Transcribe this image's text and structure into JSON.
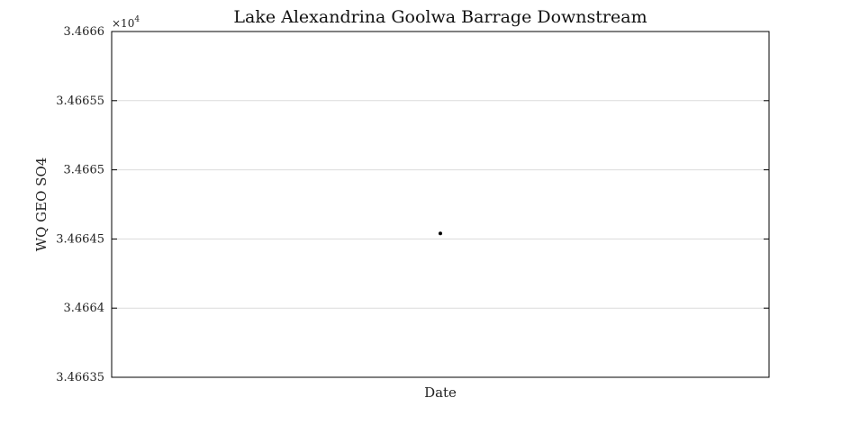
{
  "chart_data": {
    "type": "scatter",
    "title": "Lake Alexandrina Goolwa Barrage Downstream",
    "xlabel": "Date",
    "ylabel": "WQ GEO SO4",
    "y_multiplier_prefix": "×10",
    "y_multiplier_exponent": "4",
    "ylim": [
      3.46635,
      3.4666
    ],
    "yticks": [
      {
        "value": 3.46635,
        "label": "3.46635"
      },
      {
        "value": 3.4664,
        "label": "3.4664"
      },
      {
        "value": 3.46645,
        "label": "3.46645"
      },
      {
        "value": 3.4665,
        "label": "3.4665"
      },
      {
        "value": 3.46655,
        "label": "3.46655"
      },
      {
        "value": 3.4666,
        "label": "3.4666"
      }
    ],
    "grid": true,
    "series": [
      {
        "points": [
          {
            "x": 0.5,
            "y": 3.466454
          }
        ]
      }
    ],
    "colors": {
      "marker": "#000000",
      "grid": "#dcdcdc",
      "axes": "#000000"
    }
  }
}
